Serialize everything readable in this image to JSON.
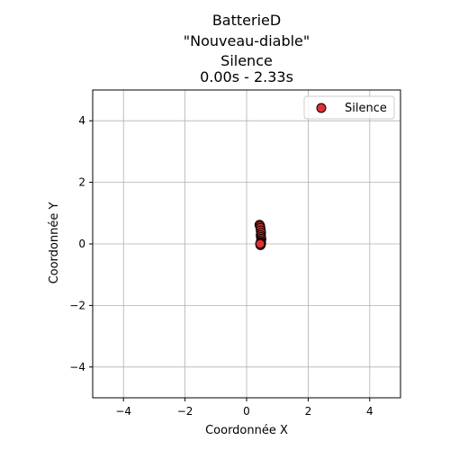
{
  "chart_data": {
    "type": "scatter",
    "title_lines": [
      "BatterieD",
      "\"Nouveau-diable\"",
      "Silence",
      "0.00s - 2.33s"
    ],
    "xlabel": "Coordonnée X",
    "ylabel": "Coordonnée Y",
    "xlim": [
      -5,
      5
    ],
    "ylim": [
      -5,
      5
    ],
    "xticks": [
      -4,
      -2,
      0,
      2,
      4
    ],
    "yticks": [
      -4,
      -2,
      0,
      2,
      4
    ],
    "xtick_labels": [
      "−4",
      "−2",
      "0",
      "2",
      "4"
    ],
    "ytick_labels": [
      "−4",
      "−2",
      "0",
      "2",
      "4"
    ],
    "grid": true,
    "legend_position": "top-right",
    "series": [
      {
        "name": "Silence",
        "color": "#e03030",
        "edge_color": "#000000",
        "x": [
          0.42,
          0.44,
          0.45,
          0.46,
          0.47,
          0.46,
          0.47,
          0.48,
          0.47,
          0.46,
          0.47,
          0.46,
          0.45,
          0.46,
          0.44
        ],
        "y": [
          0.62,
          0.58,
          0.52,
          0.44,
          0.36,
          0.28,
          0.22,
          0.16,
          0.1,
          0.05,
          0.01,
          -0.03,
          -0.04,
          0.02,
          0.0
        ]
      }
    ]
  }
}
